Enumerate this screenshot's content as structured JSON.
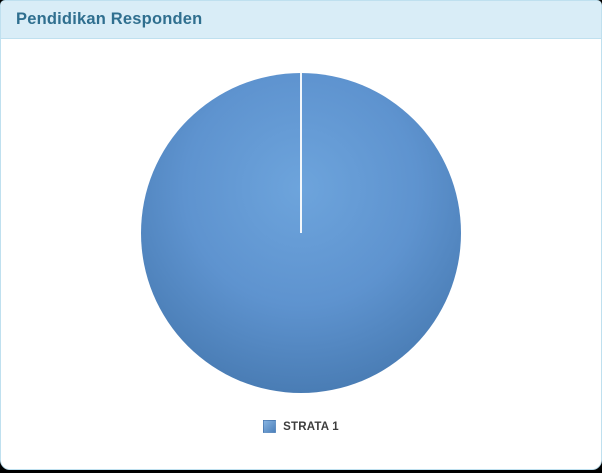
{
  "panel": {
    "title": "Pendidikan Responden"
  },
  "chart_data": {
    "type": "pie",
    "title": "Pendidikan Responden",
    "slices": [
      {
        "label": "STRATA 1",
        "value": 100,
        "unit": "percent",
        "color": "#5b90cb"
      }
    ],
    "start_angle_deg": -90,
    "seam_visible": true,
    "legend": {
      "position": "bottom",
      "items": [
        {
          "label": "STRATA 1",
          "swatch_color": "#5b90cb"
        }
      ]
    }
  },
  "colors": {
    "page_bg": "#000000",
    "card_border": "#bfe0ef",
    "header_bg": "#d9edf7",
    "header_text": "#2f6f8f",
    "pie_center": "#6da4dc",
    "pie_mid": "#5e93cf",
    "pie_edge": "#34669d",
    "seam": "#ffffff",
    "swatch_light": "#86b3e1",
    "swatch_dark": "#4d81bb",
    "legend_text": "#3d3d3d"
  }
}
